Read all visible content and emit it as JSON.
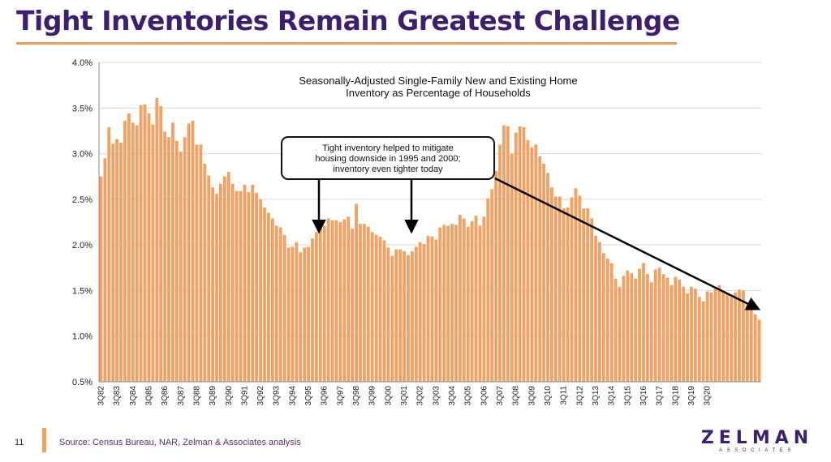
{
  "slide": {
    "title": "Tight Inventories Remain Greatest Challenge",
    "page_number": "11",
    "source": "Source: Census Bureau, NAR, Zelman & Associates analysis",
    "logo_main": "ZELMAN",
    "logo_sub": "ASSOCIATES"
  },
  "colors": {
    "bar": "#f2a162",
    "title": "#3d1f6e",
    "accent": "#ef9a5a"
  },
  "chart_data": {
    "type": "bar",
    "title": "Seasonally-Adjusted Single-Family New and Existing Home Inventory as Percentage of Households",
    "title_lines": [
      "Seasonally-Adjusted Single-Family New and Existing Home",
      "Inventory as Percentage of Households"
    ],
    "xlabel": "",
    "ylabel": "",
    "ylim": [
      0.5,
      4.0
    ],
    "yticks": [
      0.5,
      1.0,
      1.5,
      2.0,
      2.5,
      3.0,
      3.5,
      4.0
    ],
    "ytick_labels": [
      "0.5%",
      "1.0%",
      "1.5%",
      "2.0%",
      "2.5%",
      "3.0%",
      "3.5%",
      "4.0%"
    ],
    "grid": true,
    "xtick_labels": [
      "3Q82",
      "3Q83",
      "3Q84",
      "3Q85",
      "3Q86",
      "3Q87",
      "3Q88",
      "3Q89",
      "3Q90",
      "3Q91",
      "3Q92",
      "3Q93",
      "3Q94",
      "3Q95",
      "3Q96",
      "3Q97",
      "3Q98",
      "3Q99",
      "3Q00",
      "3Q01",
      "3Q02",
      "3Q03",
      "3Q04",
      "3Q05",
      "3Q06",
      "3Q07",
      "3Q08",
      "3Q09",
      "3Q10",
      "3Q11",
      "3Q12",
      "3Q13",
      "3Q14",
      "3Q15",
      "3Q16",
      "3Q17",
      "3Q18",
      "3Q19",
      "3Q20"
    ],
    "annotation": {
      "text_lines": [
        "Tight inventory helped to mitigate",
        "housing downside in 1995 and 2000;",
        "inventory even tighter today"
      ]
    },
    "series": [
      {
        "values": [
          2.75,
          2.95,
          3.29,
          3.11,
          3.16,
          3.12,
          3.36,
          3.44,
          3.34,
          3.31,
          3.53,
          3.54,
          3.44,
          3.32,
          3.61,
          3.52,
          3.24,
          3.18,
          3.34,
          3.14,
          3.02,
          3.18,
          3.33,
          3.36,
          3.1,
          3.1,
          2.89,
          2.76,
          2.63,
          2.56,
          2.67,
          2.75,
          2.8,
          2.67,
          2.59,
          2.59,
          2.66,
          2.58,
          2.66,
          2.57,
          2.5,
          2.41,
          2.35,
          2.29,
          2.21,
          2.19,
          2.11,
          1.97,
          1.98,
          2.03,
          1.92,
          1.97,
          1.98,
          2.07,
          2.14,
          2.24,
          2.21,
          2.29,
          2.27,
          2.27,
          2.25,
          2.28,
          2.31,
          2.18,
          2.45,
          2.23,
          2.23,
          2.2,
          2.14,
          2.11,
          2.09,
          2.05,
          1.97,
          1.88,
          1.95,
          1.95,
          1.93,
          1.89,
          1.93,
          1.98,
          2.03,
          2.01,
          2.1,
          2.09,
          2.06,
          2.19,
          2.22,
          2.21,
          2.23,
          2.22,
          2.33,
          2.29,
          2.2,
          2.26,
          2.32,
          2.21,
          2.31,
          2.51,
          2.61,
          2.81,
          3.1,
          3.31,
          3.3,
          3.0,
          3.23,
          3.3,
          3.29,
          3.15,
          3.07,
          3.1,
          2.97,
          2.89,
          2.79,
          2.63,
          2.53,
          2.53,
          2.4,
          2.41,
          2.52,
          2.62,
          2.54,
          2.4,
          2.4,
          2.29,
          2.1,
          2.03,
          1.91,
          1.85,
          1.8,
          1.63,
          1.54,
          1.66,
          1.72,
          1.69,
          1.63,
          1.74,
          1.8,
          1.68,
          1.59,
          1.73,
          1.75,
          1.68,
          1.64,
          1.56,
          1.65,
          1.62,
          1.54,
          1.47,
          1.54,
          1.52,
          1.43,
          1.38,
          1.49,
          1.48,
          1.52,
          1.56,
          1.5,
          1.47,
          1.43,
          1.48,
          1.51,
          1.5,
          1.34,
          1.29,
          1.24,
          1.18
        ]
      }
    ]
  }
}
